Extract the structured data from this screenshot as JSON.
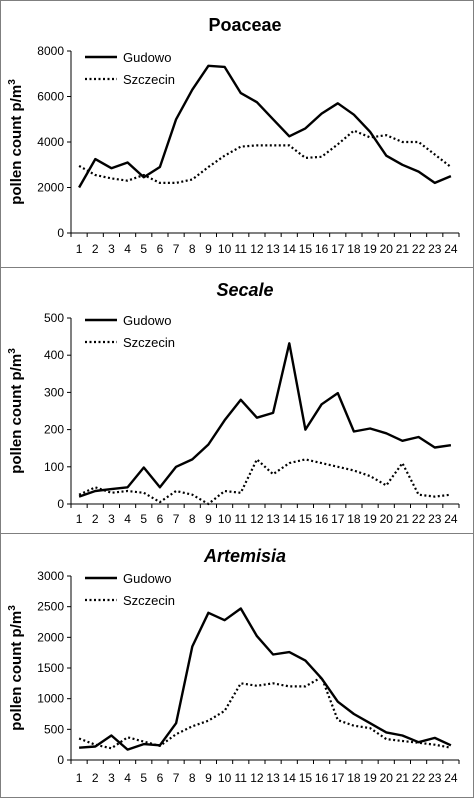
{
  "chart_data": [
    {
      "type": "line",
      "title": "Poaceae",
      "title_italic": false,
      "ylabel": "pollen count p/m",
      "ylabel_sup": "3",
      "xlabel": "",
      "categories": [
        "1",
        "2",
        "3",
        "4",
        "5",
        "6",
        "7",
        "8",
        "9",
        "10",
        "11",
        "12",
        "13",
        "14",
        "15",
        "16",
        "17",
        "18",
        "19",
        "20",
        "21",
        "22",
        "23",
        "24"
      ],
      "ylim": [
        0,
        8000
      ],
      "yticks": [
        "0",
        "2000",
        "4000",
        "6000",
        "8000"
      ],
      "legend": "top-left",
      "grid": false,
      "series": [
        {
          "name": "Gudowo",
          "style": "solid",
          "values": [
            2000,
            3250,
            2850,
            3100,
            2450,
            2900,
            5000,
            6300,
            7350,
            7300,
            6150,
            5750,
            5000,
            4250,
            4600,
            5250,
            5700,
            5200,
            4450,
            3400,
            3000,
            2700,
            2200,
            2500
          ]
        },
        {
          "name": "Szczecin",
          "style": "dotted",
          "values": [
            2950,
            2550,
            2400,
            2300,
            2550,
            2200,
            2200,
            2350,
            2900,
            3400,
            3800,
            3850,
            3850,
            3850,
            3300,
            3350,
            3900,
            4500,
            4200,
            4300,
            4000,
            4000,
            3450,
            2900
          ]
        }
      ]
    },
    {
      "type": "line",
      "title": "Secale",
      "title_italic": true,
      "ylabel": "pollen count p/m",
      "ylabel_sup": "3",
      "xlabel": "",
      "categories": [
        "1",
        "2",
        "3",
        "4",
        "5",
        "6",
        "7",
        "8",
        "9",
        "10",
        "11",
        "12",
        "13",
        "14",
        "15",
        "16",
        "17",
        "18",
        "19",
        "20",
        "21",
        "22",
        "23",
        "24"
      ],
      "ylim": [
        0,
        500
      ],
      "yticks": [
        "0",
        "100",
        "200",
        "300",
        "400",
        "500"
      ],
      "legend": "top-left",
      "grid": false,
      "series": [
        {
          "name": "Gudowo",
          "style": "solid",
          "values": [
            20,
            35,
            40,
            45,
            98,
            45,
            100,
            120,
            160,
            225,
            280,
            232,
            245,
            432,
            200,
            268,
            298,
            195,
            203,
            190,
            170,
            180,
            152,
            158
          ]
        },
        {
          "name": "Szczecin",
          "style": "dotted",
          "values": [
            25,
            45,
            30,
            35,
            30,
            5,
            35,
            25,
            0,
            35,
            30,
            120,
            80,
            110,
            120,
            110,
            100,
            90,
            75,
            50,
            110,
            25,
            20,
            25
          ]
        }
      ]
    },
    {
      "type": "line",
      "title": "Artemisia",
      "title_italic": true,
      "ylabel": "pollen count p/m",
      "ylabel_sup": "3",
      "xlabel": "",
      "categories": [
        "1",
        "2",
        "3",
        "4",
        "5",
        "6",
        "7",
        "8",
        "9",
        "10",
        "11",
        "12",
        "13",
        "14",
        "15",
        "16",
        "17",
        "18",
        "19",
        "20",
        "21",
        "22",
        "23",
        "24"
      ],
      "ylim": [
        0,
        3000
      ],
      "yticks": [
        "0",
        "500",
        "1000",
        "1500",
        "2000",
        "2500",
        "3000"
      ],
      "legend": "top-left",
      "grid": false,
      "series": [
        {
          "name": "Gudowo",
          "style": "solid",
          "values": [
            200,
            220,
            400,
            170,
            260,
            240,
            600,
            1850,
            2400,
            2280,
            2470,
            2020,
            1720,
            1760,
            1620,
            1330,
            950,
            750,
            600,
            450,
            400,
            290,
            360,
            240
          ]
        },
        {
          "name": "Szczecin",
          "style": "dotted",
          "values": [
            350,
            250,
            190,
            370,
            300,
            230,
            420,
            550,
            640,
            800,
            1250,
            1210,
            1250,
            1200,
            1200,
            1350,
            650,
            560,
            520,
            340,
            310,
            280,
            250,
            200
          ]
        }
      ]
    }
  ]
}
